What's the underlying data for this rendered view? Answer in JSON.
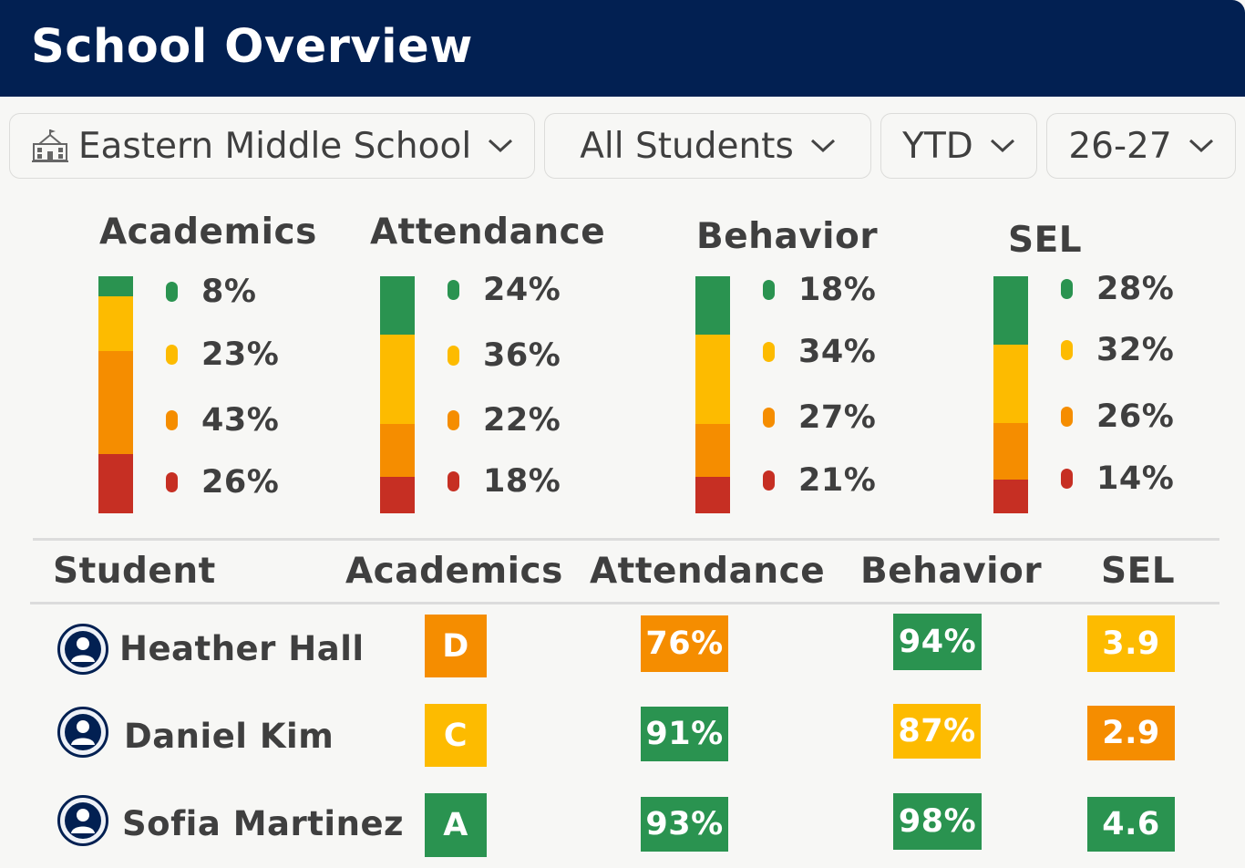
{
  "header": {
    "title": "School Overview"
  },
  "filters": {
    "school": "Eastern Middle School",
    "group": "All Students",
    "period": "YTD",
    "year": "26-27"
  },
  "colors": {
    "green": "#2a9350",
    "yellow": "#fdbb00",
    "orange": "#f58d00",
    "red": "#c62f23",
    "navy": "#022052"
  },
  "metrics": [
    {
      "title": "Academics",
      "values": [
        "8%",
        "23%",
        "43%",
        "26%"
      ]
    },
    {
      "title": "Attendance",
      "values": [
        "24%",
        "36%",
        "22%",
        "18%"
      ]
    },
    {
      "title": "Behavior",
      "values": [
        "18%",
        "34%",
        "27%",
        "21%"
      ]
    },
    {
      "title": "SEL",
      "values": [
        "28%",
        "32%",
        "26%",
        "14%"
      ]
    }
  ],
  "table": {
    "columns": [
      "Student",
      "Academics",
      "Attendance",
      "Behavior",
      "SEL"
    ],
    "rows": [
      {
        "name": "Heather Hall",
        "academics": "D",
        "attendance": "76%",
        "behavior": "94%",
        "sel": "3.9",
        "statuses": [
          "orange",
          "orange",
          "green",
          "yellow"
        ]
      },
      {
        "name": "Daniel Kim",
        "academics": "C",
        "attendance": "91%",
        "behavior": "87%",
        "sel": "2.9",
        "statuses": [
          "yellow",
          "green",
          "yellow",
          "orange"
        ]
      },
      {
        "name": "Sofia Martinez",
        "academics": "A",
        "attendance": "93%",
        "behavior": "98%",
        "sel": "4.6",
        "statuses": [
          "green",
          "green",
          "green",
          "green"
        ]
      }
    ]
  }
}
